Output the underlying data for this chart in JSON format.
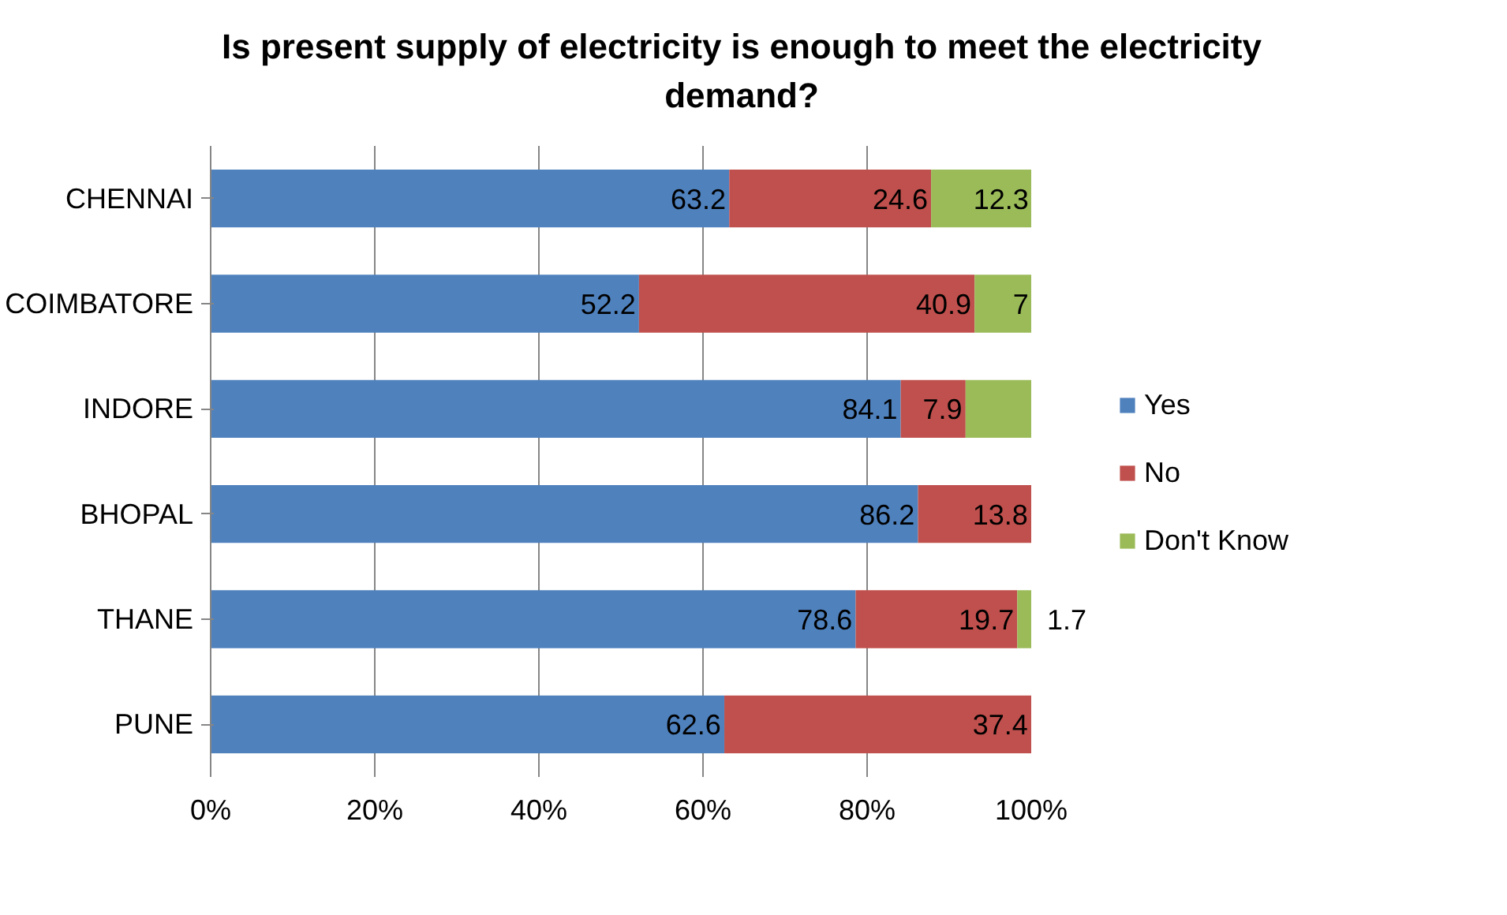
{
  "chart_data": {
    "type": "bar",
    "orientation": "horizontal",
    "stacked": true,
    "title": "Is present supply of electricity is enough to meet the electricity demand?",
    "categories": [
      "CHENNAI",
      "COIMBATORE",
      "INDORE",
      "BHOPAL",
      "THANE",
      "PUNE"
    ],
    "series": [
      {
        "name": "Yes",
        "color": "#4f81bd",
        "values": [
          63.2,
          52.2,
          84.1,
          86.2,
          78.6,
          62.6
        ],
        "value_labels": [
          "63.2",
          "52.2",
          "84.1",
          "86.2",
          "78.6",
          "62.6"
        ]
      },
      {
        "name": "No",
        "color": "#c0504d",
        "values": [
          24.6,
          40.9,
          7.9,
          13.8,
          19.7,
          37.4
        ],
        "value_labels": [
          "24.6",
          "40.9",
          "7.9",
          "13.8",
          "19.7",
          "37.4"
        ]
      },
      {
        "name": "Don't Know",
        "color": "#9bbb59",
        "values": [
          12.3,
          7,
          8.0,
          0,
          1.7,
          0
        ],
        "value_labels": [
          "12.3",
          "7",
          null,
          null,
          "1.7",
          null
        ]
      }
    ],
    "xlim": [
      0,
      100
    ],
    "xticks": [
      {
        "value": 0,
        "label": "0%"
      },
      {
        "value": 20,
        "label": "20%"
      },
      {
        "value": 40,
        "label": "40%"
      },
      {
        "value": 60,
        "label": "60%"
      },
      {
        "value": 80,
        "label": "80%"
      },
      {
        "value": 100,
        "label": "100%"
      }
    ],
    "grid": "x",
    "legend": "right"
  }
}
